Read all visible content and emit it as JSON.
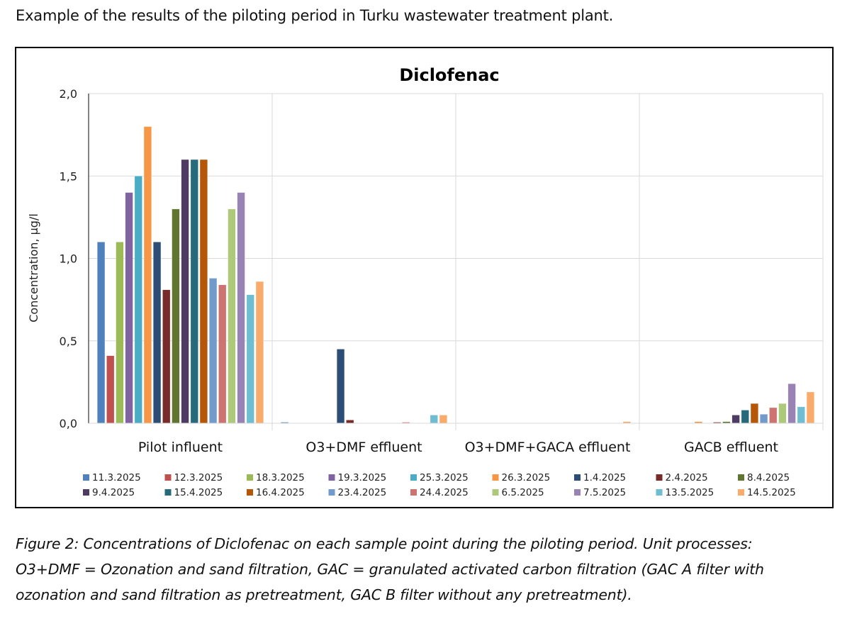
{
  "intro_text": "Example of the results of the piloting period in Turku wastewater treatment plant.",
  "caption_lines": [
    "Figure 2: Concentrations of Diclofenac on each sample point during the piloting period. Unit processes:",
    "O3+DMF = Ozonation and sand filtration, GAC = granulated activated carbon filtration (GAC A filter with",
    "ozonation and sand filtration as pretreatment, GAC B filter without any pretreatment)."
  ],
  "chart_data": {
    "type": "bar",
    "title": "Diclofenac",
    "xlabel": "",
    "ylabel": "Concentration, µg/l",
    "ylim": [
      0,
      2.0
    ],
    "yticks": [
      "0,0",
      "0,5",
      "1,0",
      "1,5",
      "2,0"
    ],
    "ytick_values": [
      0,
      0.5,
      1.0,
      1.5,
      2.0
    ],
    "grid": true,
    "legend_position": "bottom",
    "categories": [
      "Pilot influent",
      "O3+DMF effluent",
      "O3+DMF+GACA effluent",
      "GACB effluent"
    ],
    "series": [
      {
        "name": "11.3.2025",
        "color": "#4F81BD",
        "values": [
          1.1,
          0.005,
          0,
          0
        ]
      },
      {
        "name": "12.3.2025",
        "color": "#C0504D",
        "values": [
          0.41,
          0,
          0,
          0
        ]
      },
      {
        "name": "18.3.2025",
        "color": "#9BBB59",
        "values": [
          1.1,
          0,
          0,
          0
        ]
      },
      {
        "name": "19.3.2025",
        "color": "#8064A2",
        "values": [
          1.4,
          0,
          0,
          0
        ]
      },
      {
        "name": "25.3.2025",
        "color": "#4BACC6",
        "values": [
          1.5,
          0,
          0,
          0
        ]
      },
      {
        "name": "26.3.2025",
        "color": "#F79646",
        "values": [
          1.8,
          0,
          0,
          0.01
        ]
      },
      {
        "name": "1.4.2025",
        "color": "#2C4D75",
        "values": [
          1.1,
          0.45,
          0,
          0
        ]
      },
      {
        "name": "2.4.2025",
        "color": "#772C2A",
        "values": [
          0.81,
          0.02,
          0,
          0.005
        ]
      },
      {
        "name": "8.4.2025",
        "color": "#5F7530",
        "values": [
          1.3,
          0,
          0,
          0.01
        ]
      },
      {
        "name": "9.4.2025",
        "color": "#4D3B62",
        "values": [
          1.6,
          0,
          0,
          0.05
        ]
      },
      {
        "name": "15.4.2025",
        "color": "#276A7C",
        "values": [
          1.6,
          0,
          0,
          0.08
        ]
      },
      {
        "name": "16.4.2025",
        "color": "#B65708",
        "values": [
          1.6,
          0,
          0,
          0.12
        ]
      },
      {
        "name": "23.4.2025",
        "color": "#729ACA",
        "values": [
          0.88,
          0,
          0,
          0.055
        ]
      },
      {
        "name": "24.4.2025",
        "color": "#CD7371",
        "values": [
          0.84,
          0.005,
          0,
          0.095
        ]
      },
      {
        "name": "6.5.2025",
        "color": "#AFC97A",
        "values": [
          1.3,
          0,
          0,
          0.12
        ]
      },
      {
        "name": "7.5.2025",
        "color": "#9983B5",
        "values": [
          1.4,
          0,
          0,
          0.24
        ]
      },
      {
        "name": "13.5.2025",
        "color": "#6FBDD1",
        "values": [
          0.78,
          0.05,
          0,
          0.1
        ]
      },
      {
        "name": "14.5.2025",
        "color": "#F9AB6B",
        "values": [
          0.86,
          0.05,
          0.01,
          0.19
        ]
      }
    ]
  }
}
